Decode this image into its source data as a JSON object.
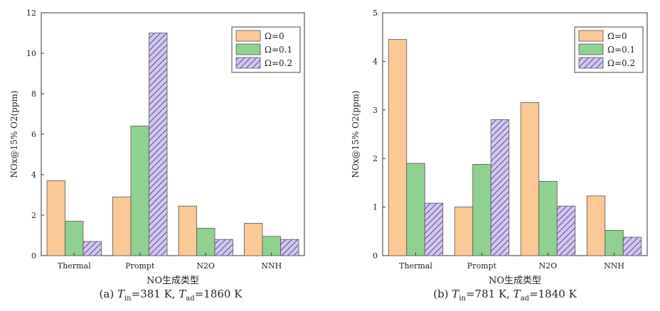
{
  "colors": {
    "omega0": "#fcc894",
    "omega01": "#8fd18e",
    "omega02_bg": "#d3c8ef",
    "omega02_line": "#6a5aa8",
    "edge": "#555555"
  },
  "chart_data": [
    {
      "type": "bar",
      "panel": "a",
      "categories": [
        "Thermal",
        "Prompt",
        "N2O",
        "NNH"
      ],
      "series": [
        {
          "name": "Ω=0",
          "values": [
            3.7,
            2.9,
            2.45,
            1.6
          ]
        },
        {
          "name": "Ω=0.1",
          "values": [
            1.7,
            6.4,
            1.35,
            0.95
          ]
        },
        {
          "name": "Ω=0.2",
          "values": [
            0.7,
            11.0,
            0.8,
            0.8
          ]
        }
      ],
      "xlabel": "NO生成类型",
      "ylabel": "NOx@15% O2(ppm)",
      "ylim": [
        0,
        12
      ],
      "yticks": [
        "0",
        "2",
        "4",
        "6",
        "8",
        "10",
        "12"
      ],
      "legend_position": "top-right",
      "caption": {
        "prefix": "(a) ",
        "t_in": "T",
        "t_in_sub": "in",
        "t_in_val": "=381 K, ",
        "t_ad": "T",
        "t_ad_sub": "ad",
        "t_ad_val": "=1860 K"
      }
    },
    {
      "type": "bar",
      "panel": "b",
      "categories": [
        "Thermal",
        "Prompt",
        "N2O",
        "NNH"
      ],
      "series": [
        {
          "name": "Ω=0",
          "values": [
            4.45,
            1.0,
            3.15,
            1.23
          ]
        },
        {
          "name": "Ω=0.1",
          "values": [
            1.9,
            1.88,
            1.53,
            0.52
          ]
        },
        {
          "name": "Ω=0.2",
          "values": [
            1.08,
            2.8,
            1.02,
            0.38
          ]
        }
      ],
      "xlabel": "NO生成类型",
      "ylabel": "NOx@15% O2(ppm)",
      "ylim": [
        0,
        5
      ],
      "yticks": [
        "0",
        "1",
        "2",
        "3",
        "4",
        "5"
      ],
      "legend_position": "top-right",
      "caption": {
        "prefix": "(b) ",
        "t_in": "T",
        "t_in_sub": "in",
        "t_in_val": "=781 K, ",
        "t_ad": "T",
        "t_ad_sub": "ad",
        "t_ad_val": "=1840 K"
      }
    }
  ]
}
